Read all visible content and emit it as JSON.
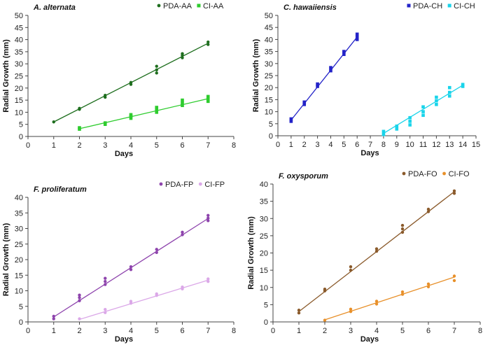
{
  "chart_data": [
    {
      "type": "scatter",
      "title": "A. alternata",
      "xlabel": "Days",
      "ylabel": "Radial Growth (mm)",
      "xlim": [
        0,
        8
      ],
      "ylim": [
        0,
        50
      ],
      "xstep": 1,
      "ystep": 5,
      "legend_position": "top-right",
      "series": [
        {
          "name": "PDA-AA",
          "color": "#1e6e1e",
          "marker": "circle",
          "points": [
            [
              1,
              6
            ],
            [
              2,
              11.2
            ],
            [
              2,
              11.6
            ],
            [
              3,
              16.2
            ],
            [
              3,
              17
            ],
            [
              4,
              21.5
            ],
            [
              4,
              22.3
            ],
            [
              5,
              26.2
            ],
            [
              5,
              27.5
            ],
            [
              5,
              29
            ],
            [
              6,
              32.5
            ],
            [
              6,
              33.5
            ],
            [
              6,
              34.2
            ],
            [
              7,
              38
            ],
            [
              7,
              39
            ]
          ],
          "trend": [
            [
              1,
              6
            ],
            [
              7,
              38.5
            ]
          ]
        },
        {
          "name": "CI-AA",
          "color": "#2ecc2e",
          "marker": "square",
          "points": [
            [
              2,
              3
            ],
            [
              2,
              3.6
            ],
            [
              3,
              5
            ],
            [
              3,
              5.6
            ],
            [
              4,
              7.5
            ],
            [
              4,
              8.3
            ],
            [
              4,
              9
            ],
            [
              5,
              10
            ],
            [
              5,
              11
            ],
            [
              5,
              12
            ],
            [
              6,
              12.8
            ],
            [
              6,
              13.8
            ],
            [
              6,
              15
            ],
            [
              7,
              14.5
            ],
            [
              7,
              15.5
            ],
            [
              7,
              16.5
            ]
          ],
          "trend": [
            [
              2,
              3.2
            ],
            [
              7,
              15.6
            ]
          ]
        }
      ]
    },
    {
      "type": "scatter",
      "title": "C. hawaiiensis",
      "xlabel": "Days",
      "ylabel": "Radial Growth (mm)",
      "xlim": [
        0,
        15
      ],
      "ylim": [
        0,
        50
      ],
      "xstep": 1,
      "ystep": 5,
      "legend_position": "top-right",
      "series": [
        {
          "name": "PDA-CH",
          "color": "#2323c8",
          "marker": "square",
          "points": [
            [
              1,
              6
            ],
            [
              1,
              7
            ],
            [
              2,
              13
            ],
            [
              2,
              14
            ],
            [
              3,
              20.5
            ],
            [
              3,
              21.5
            ],
            [
              4,
              27
            ],
            [
              4,
              28.3
            ],
            [
              5,
              33.8
            ],
            [
              5,
              35
            ],
            [
              6,
              40
            ],
            [
              6,
              41
            ],
            [
              6,
              42.2
            ]
          ],
          "trend": [
            [
              1,
              6.5
            ],
            [
              6,
              41
            ]
          ]
        },
        {
          "name": "CI-CH",
          "color": "#19d4ea",
          "marker": "square",
          "points": [
            [
              8,
              0.5
            ],
            [
              8,
              1.8
            ],
            [
              9,
              2.8
            ],
            [
              9,
              4
            ],
            [
              10,
              4.5
            ],
            [
              10,
              6
            ],
            [
              10,
              7.5
            ],
            [
              11,
              8.5
            ],
            [
              11,
              10
            ],
            [
              11,
              12
            ],
            [
              12,
              13
            ],
            [
              12,
              14.5
            ],
            [
              12,
              16
            ],
            [
              13,
              16.5
            ],
            [
              13,
              18
            ],
            [
              13,
              20
            ],
            [
              14,
              20.5
            ],
            [
              14,
              21.3
            ]
          ],
          "trend": [
            [
              8,
              1
            ],
            [
              14,
              21
            ]
          ]
        }
      ]
    },
    {
      "type": "scatter",
      "title": "F. proliferatum",
      "xlabel": "Days",
      "ylabel": "Radial Growth (mm)",
      "xlim": [
        0,
        8
      ],
      "ylim": [
        0,
        40
      ],
      "xstep": 1,
      "ystep": 5,
      "legend_position": "top-right",
      "series": [
        {
          "name": "PDA-FP",
          "color": "#8e44ad",
          "marker": "circle",
          "points": [
            [
              1,
              1
            ],
            [
              1,
              1.8
            ],
            [
              2,
              6.8
            ],
            [
              2,
              7.8
            ],
            [
              2,
              8.6
            ],
            [
              3,
              12
            ],
            [
              3,
              13
            ],
            [
              3,
              14
            ],
            [
              4,
              16.8
            ],
            [
              4,
              17.7
            ],
            [
              5,
              22.3
            ],
            [
              5,
              23.3
            ],
            [
              6,
              28
            ],
            [
              6,
              28.8
            ],
            [
              7,
              32.5
            ],
            [
              7,
              33.3
            ],
            [
              7,
              34.2
            ]
          ],
          "trend": [
            [
              1,
              1.6
            ],
            [
              7,
              33.2
            ]
          ]
        },
        {
          "name": "CI-FP",
          "color": "#dba8e8",
          "marker": "circle",
          "points": [
            [
              2,
              1
            ],
            [
              3,
              3
            ],
            [
              3,
              4
            ],
            [
              4,
              6
            ],
            [
              4,
              6.6
            ],
            [
              5,
              8.5
            ],
            [
              5,
              9
            ],
            [
              6,
              10.6
            ],
            [
              6,
              11.2
            ],
            [
              7,
              13
            ],
            [
              7,
              13.8
            ]
          ],
          "trend": [
            [
              2,
              0.8
            ],
            [
              7,
              13.4
            ]
          ]
        }
      ]
    },
    {
      "type": "scatter",
      "title": "F. oxysporum",
      "xlabel": "Days",
      "ylabel": "Radial Growth (mm)",
      "xlim": [
        0,
        8
      ],
      "ylim": [
        0,
        40
      ],
      "xstep": 1,
      "ystep": 5,
      "legend_position": "top-right",
      "series": [
        {
          "name": "PDA-FO",
          "color": "#8a5a2b",
          "marker": "circle",
          "points": [
            [
              1,
              2.6
            ],
            [
              1,
              3.4
            ],
            [
              2,
              9
            ],
            [
              2,
              9.5
            ],
            [
              3,
              15
            ],
            [
              3,
              16
            ],
            [
              4,
              20.5
            ],
            [
              4,
              21.2
            ],
            [
              5,
              26
            ],
            [
              5,
              27
            ],
            [
              5,
              28
            ],
            [
              6,
              32
            ],
            [
              6,
              32.7
            ],
            [
              7,
              37.3
            ],
            [
              7,
              38
            ]
          ],
          "trend": [
            [
              1,
              3
            ],
            [
              7,
              37.8
            ]
          ]
        },
        {
          "name": "CI-FO",
          "color": "#e8902a",
          "marker": "circle",
          "points": [
            [
              2,
              0.5
            ],
            [
              3,
              3
            ],
            [
              3,
              3.7
            ],
            [
              4,
              5.2
            ],
            [
              4,
              6
            ],
            [
              5,
              8
            ],
            [
              5,
              8.7
            ],
            [
              6,
              10.2
            ],
            [
              6,
              11
            ],
            [
              7,
              12
            ],
            [
              7,
              13.3
            ]
          ],
          "trend": [
            [
              2,
              0.6
            ],
            [
              7,
              13
            ]
          ]
        }
      ]
    }
  ]
}
